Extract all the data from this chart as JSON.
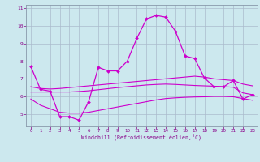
{
  "background_color": "#cce8ee",
  "grid_color": "#aabbcc",
  "line_color": "#cc00cc",
  "xlabel": "Windchill (Refroidissement éolien,°C)",
  "xlim": [
    -0.5,
    23.5
  ],
  "ylim": [
    4.3,
    11.2
  ],
  "yticks": [
    5,
    6,
    7,
    8,
    9,
    10,
    11
  ],
  "xticks": [
    0,
    1,
    2,
    3,
    4,
    5,
    6,
    7,
    8,
    9,
    10,
    11,
    12,
    13,
    14,
    15,
    16,
    17,
    18,
    19,
    20,
    21,
    22,
    23
  ],
  "series": {
    "main": {
      "x": [
        0,
        1,
        2,
        3,
        4,
        5,
        6,
        7,
        8,
        9,
        10,
        11,
        12,
        13,
        14,
        15,
        16,
        17,
        18,
        19,
        20,
        21,
        22,
        23
      ],
      "y": [
        7.7,
        6.4,
        6.3,
        4.85,
        4.85,
        4.65,
        5.7,
        7.65,
        7.45,
        7.45,
        8.0,
        9.3,
        10.4,
        10.6,
        10.5,
        9.7,
        8.3,
        8.15,
        7.05,
        6.55,
        6.55,
        6.9,
        5.85,
        6.1
      ]
    },
    "upper": {
      "x": [
        0,
        1,
        2,
        3,
        4,
        5,
        6,
        7,
        8,
        9,
        10,
        11,
        12,
        13,
        14,
        15,
        16,
        17,
        18,
        19,
        20,
        21,
        22,
        23
      ],
      "y": [
        6.55,
        6.45,
        6.42,
        6.45,
        6.5,
        6.55,
        6.6,
        6.65,
        6.7,
        6.75,
        6.8,
        6.85,
        6.9,
        6.95,
        7.0,
        7.05,
        7.1,
        7.15,
        7.1,
        7.0,
        6.95,
        6.9,
        6.7,
        6.6
      ]
    },
    "middle": {
      "x": [
        0,
        1,
        2,
        3,
        4,
        5,
        6,
        7,
        8,
        9,
        10,
        11,
        12,
        13,
        14,
        15,
        16,
        17,
        18,
        19,
        20,
        21,
        22,
        23
      ],
      "y": [
        6.25,
        6.25,
        6.25,
        6.25,
        6.25,
        6.28,
        6.32,
        6.38,
        6.44,
        6.5,
        6.55,
        6.6,
        6.65,
        6.68,
        6.7,
        6.68,
        6.65,
        6.62,
        6.6,
        6.58,
        6.55,
        6.52,
        6.2,
        6.1
      ]
    },
    "lower": {
      "x": [
        0,
        1,
        2,
        3,
        4,
        5,
        6,
        7,
        8,
        9,
        10,
        11,
        12,
        13,
        14,
        15,
        16,
        17,
        18,
        19,
        20,
        21,
        22,
        23
      ],
      "y": [
        5.85,
        5.5,
        5.3,
        5.1,
        5.05,
        5.05,
        5.1,
        5.2,
        5.3,
        5.4,
        5.5,
        5.6,
        5.7,
        5.8,
        5.88,
        5.92,
        5.95,
        5.97,
        5.98,
        6.0,
        6.0,
        5.98,
        5.88,
        5.78
      ]
    }
  }
}
